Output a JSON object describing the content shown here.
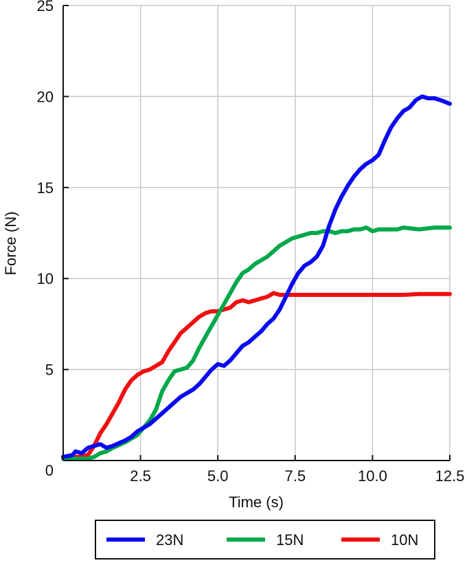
{
  "chart_data": {
    "type": "line",
    "title": "",
    "xlabel": "Time (s)",
    "ylabel": "Force (N)",
    "xlim": [
      0,
      12.5
    ],
    "ylim": [
      0,
      25
    ],
    "xticks": [
      2.5,
      5.0,
      7.5,
      10.0,
      12.5
    ],
    "xtick_labels": [
      "2.5",
      "5.0",
      "7.5",
      "10.0",
      "12.5"
    ],
    "yticks": [
      0,
      5,
      10,
      15,
      20,
      25
    ],
    "ytick_labels": [
      "0",
      "5",
      "10",
      "15",
      "20",
      "25"
    ],
    "grid": true,
    "legend_position": "bottom",
    "series": [
      {
        "name": "23N",
        "color": "#0a0af0",
        "points": [
          [
            0,
            0.2
          ],
          [
            0.3,
            0.3
          ],
          [
            0.4,
            0.5
          ],
          [
            0.6,
            0.4
          ],
          [
            0.8,
            0.7
          ],
          [
            1.0,
            0.8
          ],
          [
            1.2,
            0.9
          ],
          [
            1.4,
            0.7
          ],
          [
            1.6,
            0.8
          ],
          [
            1.8,
            0.95
          ],
          [
            2.0,
            1.1
          ],
          [
            2.2,
            1.3
          ],
          [
            2.4,
            1.6
          ],
          [
            2.6,
            1.8
          ],
          [
            2.8,
            2.0
          ],
          [
            3.0,
            2.3
          ],
          [
            3.2,
            2.6
          ],
          [
            3.4,
            2.9
          ],
          [
            3.6,
            3.2
          ],
          [
            3.8,
            3.5
          ],
          [
            4.0,
            3.7
          ],
          [
            4.2,
            3.9
          ],
          [
            4.4,
            4.2
          ],
          [
            4.6,
            4.6
          ],
          [
            4.8,
            5.0
          ],
          [
            5.0,
            5.3
          ],
          [
            5.2,
            5.2
          ],
          [
            5.4,
            5.5
          ],
          [
            5.6,
            5.9
          ],
          [
            5.8,
            6.3
          ],
          [
            6.0,
            6.5
          ],
          [
            6.2,
            6.8
          ],
          [
            6.4,
            7.1
          ],
          [
            6.6,
            7.5
          ],
          [
            6.8,
            7.8
          ],
          [
            7.0,
            8.3
          ],
          [
            7.2,
            9.0
          ],
          [
            7.4,
            9.7
          ],
          [
            7.6,
            10.3
          ],
          [
            7.8,
            10.7
          ],
          [
            8.0,
            10.9
          ],
          [
            8.2,
            11.2
          ],
          [
            8.4,
            11.8
          ],
          [
            8.6,
            12.9
          ],
          [
            8.8,
            13.8
          ],
          [
            9.0,
            14.5
          ],
          [
            9.2,
            15.1
          ],
          [
            9.4,
            15.6
          ],
          [
            9.6,
            16.0
          ],
          [
            9.8,
            16.3
          ],
          [
            10.0,
            16.5
          ],
          [
            10.2,
            16.8
          ],
          [
            10.4,
            17.6
          ],
          [
            10.6,
            18.3
          ],
          [
            10.8,
            18.8
          ],
          [
            11.0,
            19.2
          ],
          [
            11.2,
            19.4
          ],
          [
            11.4,
            19.8
          ],
          [
            11.6,
            20.0
          ],
          [
            11.8,
            19.9
          ],
          [
            12.0,
            19.9
          ],
          [
            12.2,
            19.8
          ],
          [
            12.5,
            19.6
          ]
        ]
      },
      {
        "name": "15N",
        "color": "#00a84a",
        "points": [
          [
            0,
            0.1
          ],
          [
            0.5,
            0.1
          ],
          [
            0.8,
            0.1
          ],
          [
            1.0,
            0.2
          ],
          [
            1.2,
            0.4
          ],
          [
            1.4,
            0.5
          ],
          [
            1.6,
            0.7
          ],
          [
            1.8,
            0.85
          ],
          [
            2.0,
            1.0
          ],
          [
            2.2,
            1.2
          ],
          [
            2.4,
            1.4
          ],
          [
            2.6,
            1.8
          ],
          [
            2.8,
            2.2
          ],
          [
            3.0,
            2.8
          ],
          [
            3.2,
            3.8
          ],
          [
            3.4,
            4.4
          ],
          [
            3.6,
            4.9
          ],
          [
            3.8,
            5.0
          ],
          [
            4.0,
            5.1
          ],
          [
            4.2,
            5.5
          ],
          [
            4.4,
            6.2
          ],
          [
            4.6,
            6.8
          ],
          [
            4.8,
            7.4
          ],
          [
            5.0,
            8.0
          ],
          [
            5.2,
            8.6
          ],
          [
            5.4,
            9.2
          ],
          [
            5.6,
            9.8
          ],
          [
            5.8,
            10.3
          ],
          [
            6.0,
            10.5
          ],
          [
            6.2,
            10.8
          ],
          [
            6.4,
            11.0
          ],
          [
            6.6,
            11.2
          ],
          [
            6.8,
            11.5
          ],
          [
            7.0,
            11.8
          ],
          [
            7.2,
            12.0
          ],
          [
            7.4,
            12.2
          ],
          [
            7.6,
            12.3
          ],
          [
            7.8,
            12.4
          ],
          [
            8.0,
            12.5
          ],
          [
            8.2,
            12.5
          ],
          [
            8.4,
            12.6
          ],
          [
            8.6,
            12.6
          ],
          [
            8.8,
            12.5
          ],
          [
            9.0,
            12.6
          ],
          [
            9.2,
            12.6
          ],
          [
            9.4,
            12.7
          ],
          [
            9.6,
            12.7
          ],
          [
            9.8,
            12.8
          ],
          [
            10.0,
            12.6
          ],
          [
            10.2,
            12.7
          ],
          [
            10.4,
            12.7
          ],
          [
            10.6,
            12.7
          ],
          [
            10.8,
            12.7
          ],
          [
            11.0,
            12.8
          ],
          [
            11.5,
            12.7
          ],
          [
            12.0,
            12.8
          ],
          [
            12.5,
            12.8
          ]
        ]
      },
      {
        "name": "10N",
        "color": "#f01010",
        "points": [
          [
            0,
            0.2
          ],
          [
            0.5,
            0.2
          ],
          [
            0.8,
            0.3
          ],
          [
            1.0,
            0.8
          ],
          [
            1.2,
            1.5
          ],
          [
            1.4,
            2.0
          ],
          [
            1.6,
            2.6
          ],
          [
            1.8,
            3.2
          ],
          [
            2.0,
            3.9
          ],
          [
            2.2,
            4.4
          ],
          [
            2.4,
            4.7
          ],
          [
            2.6,
            4.9
          ],
          [
            2.8,
            5.0
          ],
          [
            3.0,
            5.2
          ],
          [
            3.2,
            5.4
          ],
          [
            3.4,
            6.0
          ],
          [
            3.6,
            6.5
          ],
          [
            3.8,
            7.0
          ],
          [
            4.0,
            7.3
          ],
          [
            4.2,
            7.6
          ],
          [
            4.4,
            7.9
          ],
          [
            4.6,
            8.1
          ],
          [
            4.8,
            8.2
          ],
          [
            5.0,
            8.2
          ],
          [
            5.2,
            8.3
          ],
          [
            5.4,
            8.4
          ],
          [
            5.6,
            8.7
          ],
          [
            5.8,
            8.8
          ],
          [
            6.0,
            8.7
          ],
          [
            6.2,
            8.8
          ],
          [
            6.4,
            8.9
          ],
          [
            6.6,
            9.0
          ],
          [
            6.8,
            9.2
          ],
          [
            7.0,
            9.1
          ],
          [
            7.2,
            9.1
          ],
          [
            7.5,
            9.1
          ],
          [
            8.0,
            9.1
          ],
          [
            8.5,
            9.1
          ],
          [
            9.0,
            9.1
          ],
          [
            9.5,
            9.1
          ],
          [
            10.0,
            9.1
          ],
          [
            10.5,
            9.1
          ],
          [
            11.0,
            9.1
          ],
          [
            11.5,
            9.15
          ],
          [
            12.0,
            9.15
          ],
          [
            12.5,
            9.15
          ]
        ]
      }
    ]
  }
}
